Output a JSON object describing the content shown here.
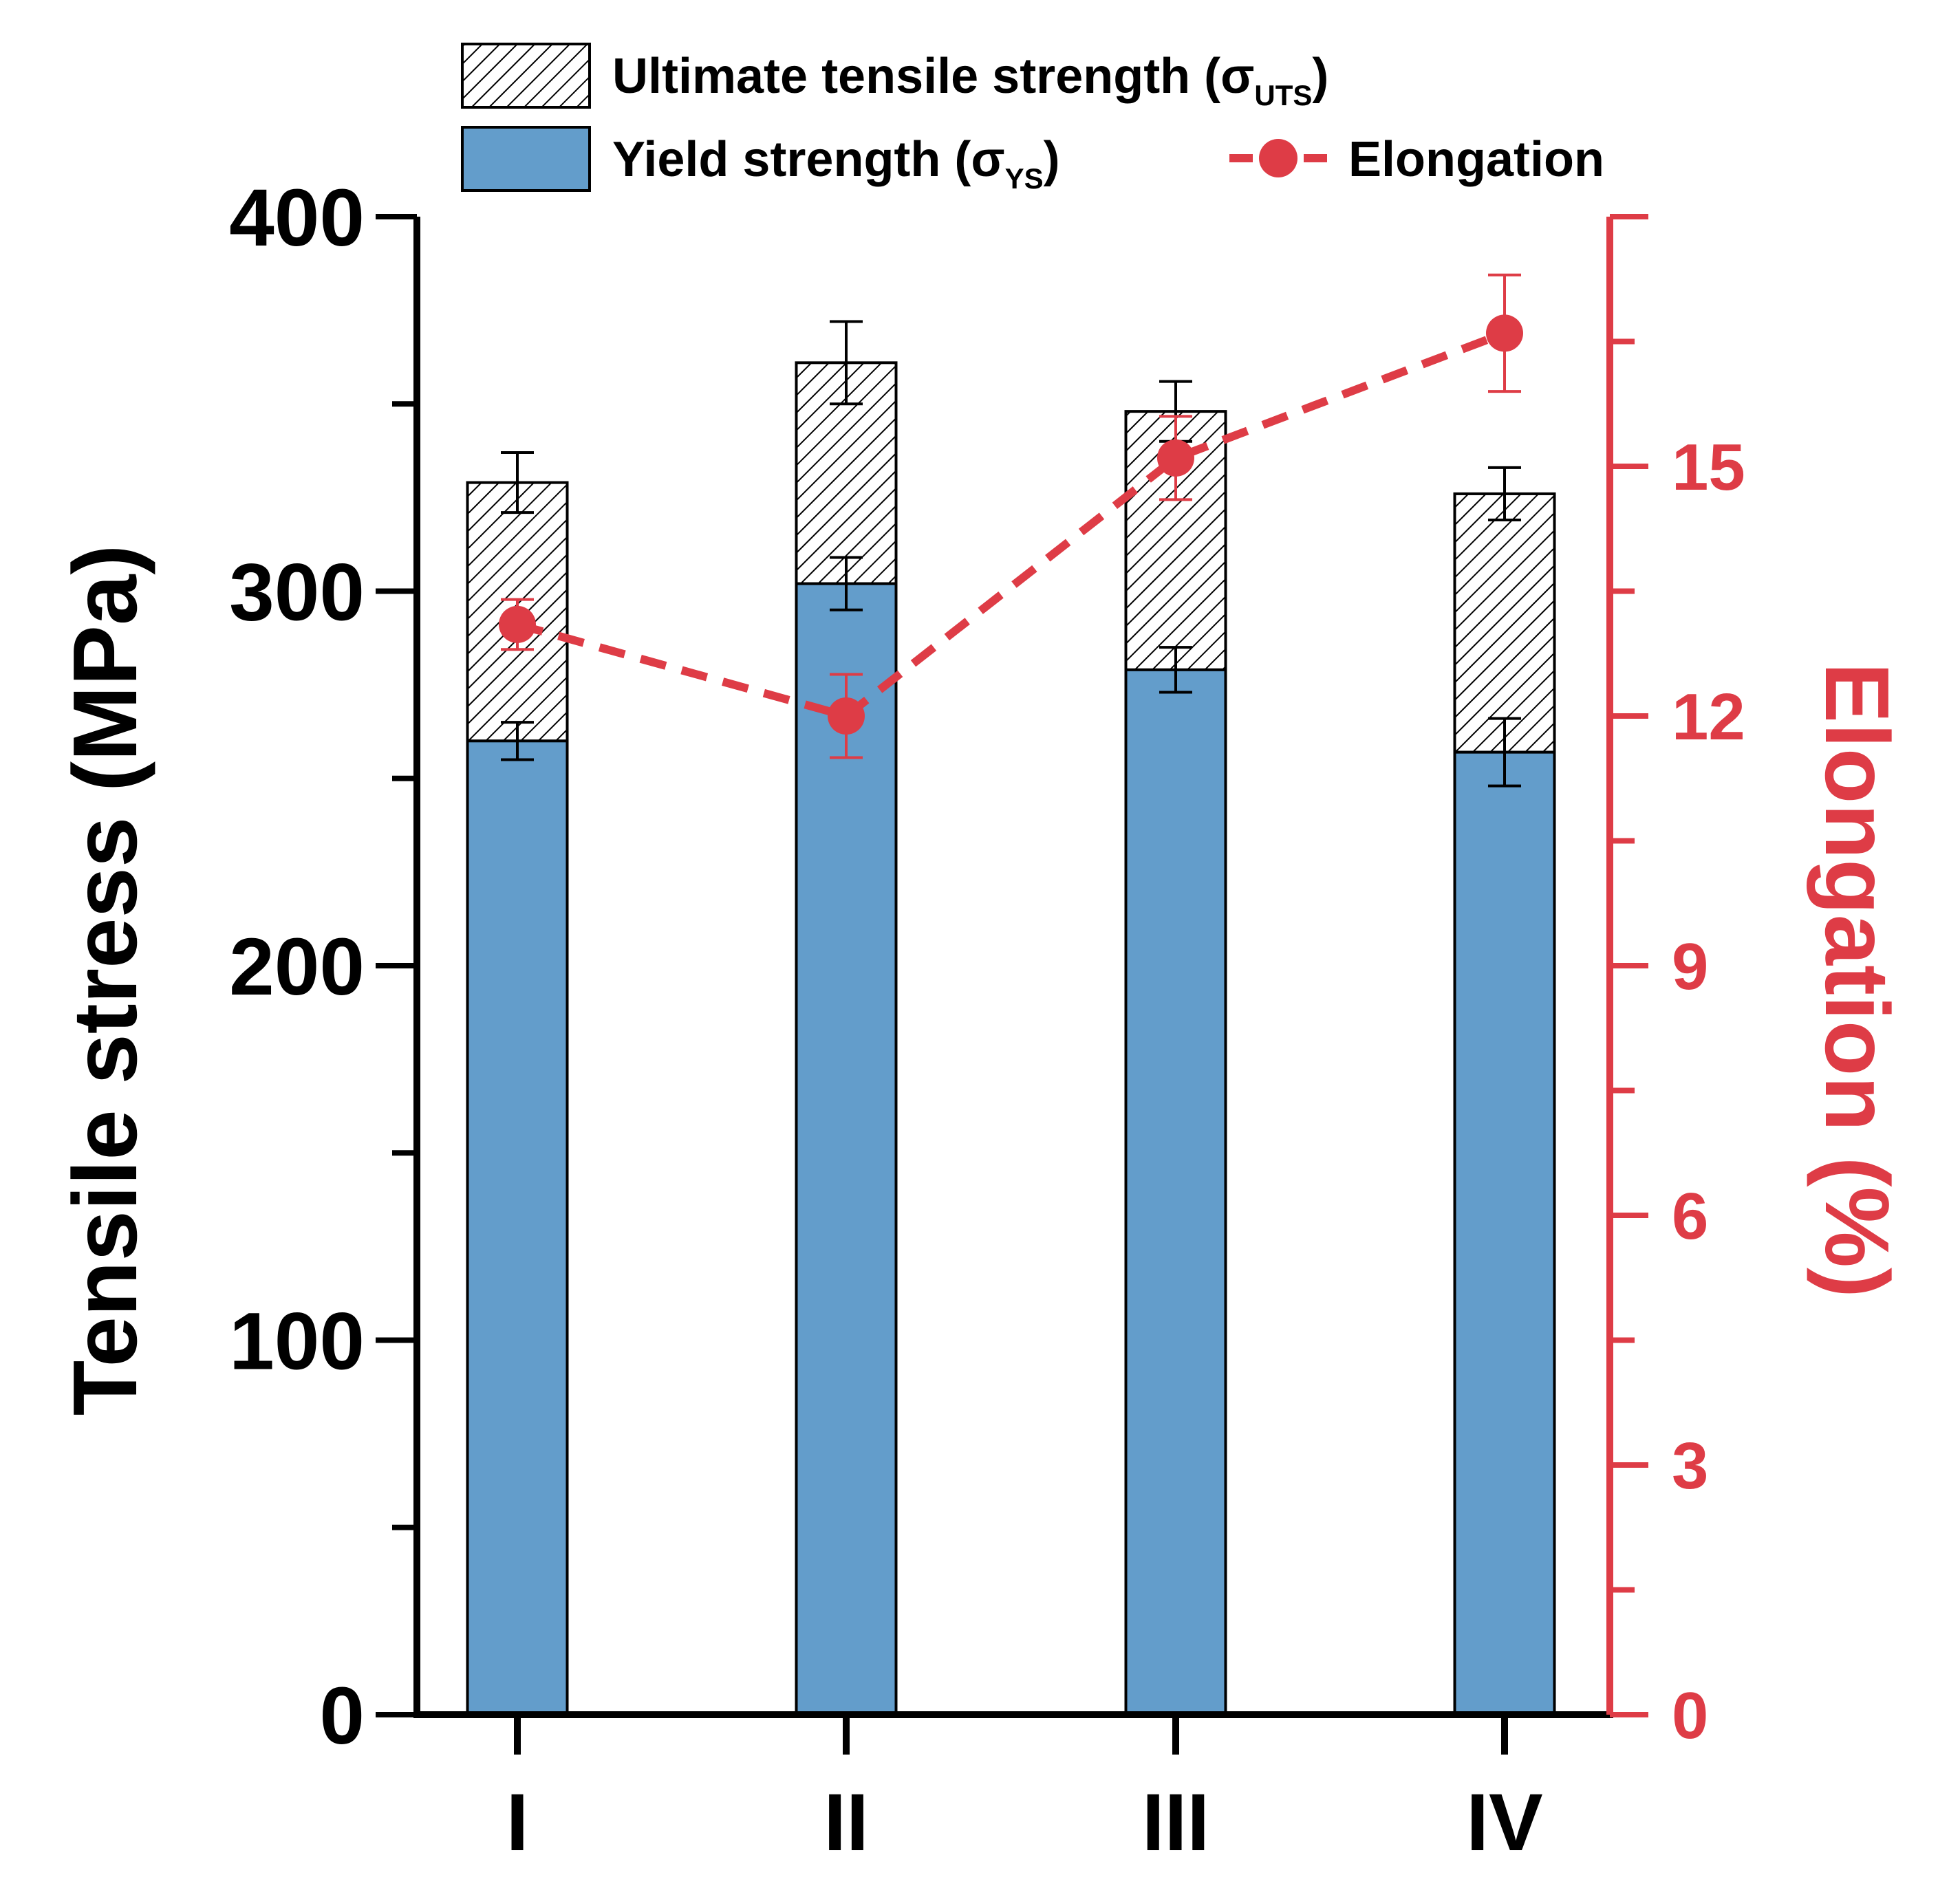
{
  "chart_data": {
    "type": "bar",
    "categories": [
      "I",
      "II",
      "III",
      "IV"
    ],
    "ylabel": "Tensile stress (MPa)",
    "y2label": "Elongation (%)",
    "ylim": [
      0,
      400
    ],
    "y2lim": [
      0,
      18
    ],
    "yticks": [
      0,
      100,
      200,
      300,
      400
    ],
    "y2ticks": [
      0,
      3,
      6,
      9,
      12,
      15
    ],
    "series": [
      {
        "name": "Yield strength",
        "subscript": "YS",
        "kind": "bar",
        "values": [
          260,
          302,
          279,
          257
        ],
        "errors": [
          5,
          7,
          6,
          9
        ]
      },
      {
        "name": "Ultimate tensile strength",
        "subscript": "UTS",
        "kind": "bar-hatched",
        "values": [
          329,
          361,
          348,
          326
        ],
        "errors": [
          8,
          11,
          8,
          7
        ]
      },
      {
        "name": "Elongation",
        "kind": "line",
        "axis": "right",
        "values": [
          13.1,
          12.0,
          15.1,
          16.6
        ],
        "errors": [
          0.3,
          0.5,
          0.5,
          0.7
        ]
      }
    ],
    "legend": {
      "uts_label": "Ultimate tensile strength (σ",
      "uts_sub": "UTS",
      "ys_label": "Yield strength (σ",
      "ys_sub": "YS",
      "close_paren": ")",
      "elong_label": "Elongation",
      "placement": "top"
    }
  },
  "colors": {
    "bar": "#639dcb",
    "line": "#de3c46",
    "axis": "#000000"
  }
}
